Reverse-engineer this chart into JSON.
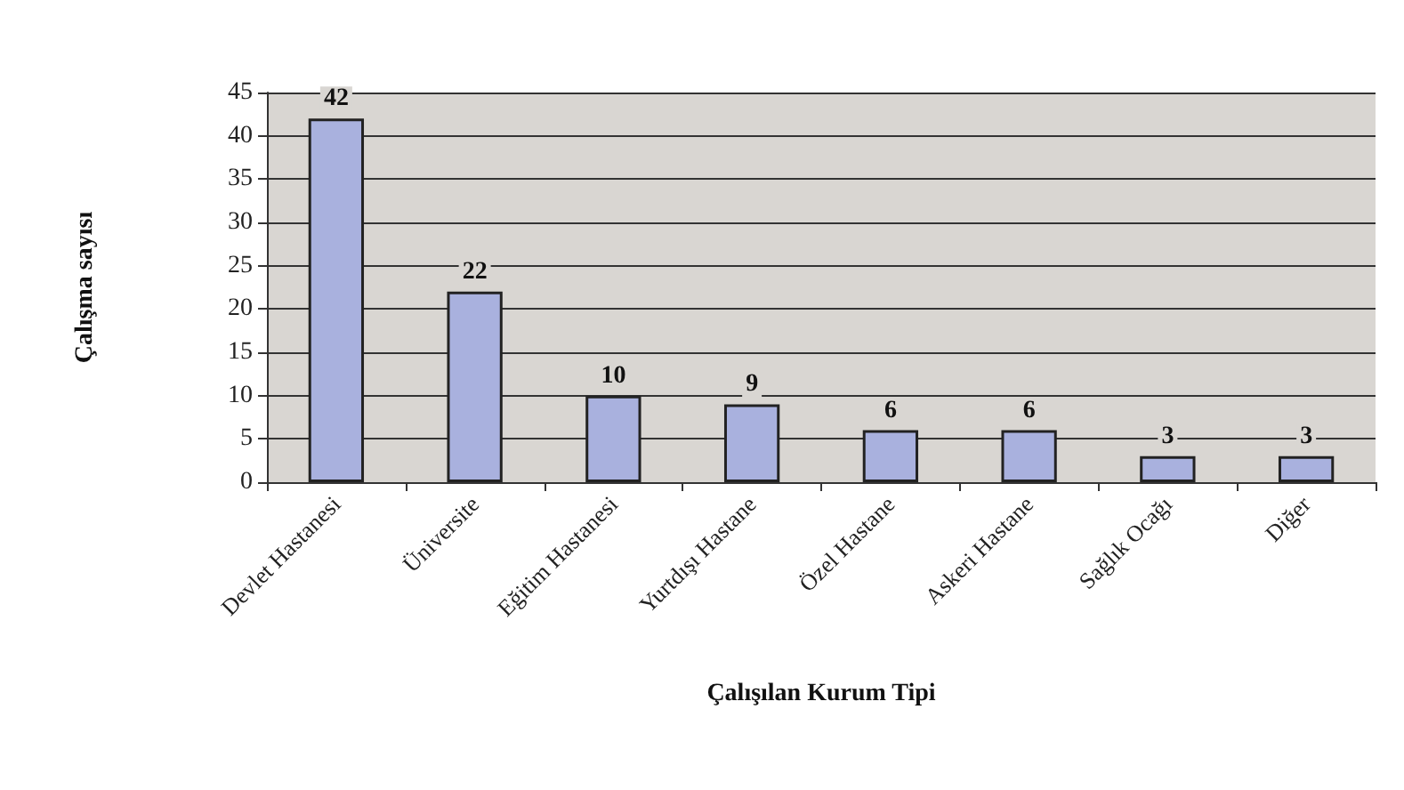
{
  "chart_data": {
    "type": "bar",
    "xlabel": "Çalışılan Kurum Tipi",
    "ylabel": "Çalışma sayısı",
    "categories": [
      "Devlet Hastanesi",
      "Üniversite",
      "Eğitim Hastanesi",
      "Yurtdışı Hastane",
      "Özel Hastane",
      "Askeri Hastane",
      "Sağlık Ocağı",
      "Diğer"
    ],
    "values": [
      42,
      22,
      10,
      9,
      6,
      6,
      3,
      3
    ],
    "color": "#a9b1de",
    "ylim": [
      0,
      45
    ],
    "yticks": [
      0,
      5,
      10,
      15,
      20,
      25,
      30,
      35,
      40,
      45
    ],
    "grid": "y",
    "data_labels": true
  }
}
